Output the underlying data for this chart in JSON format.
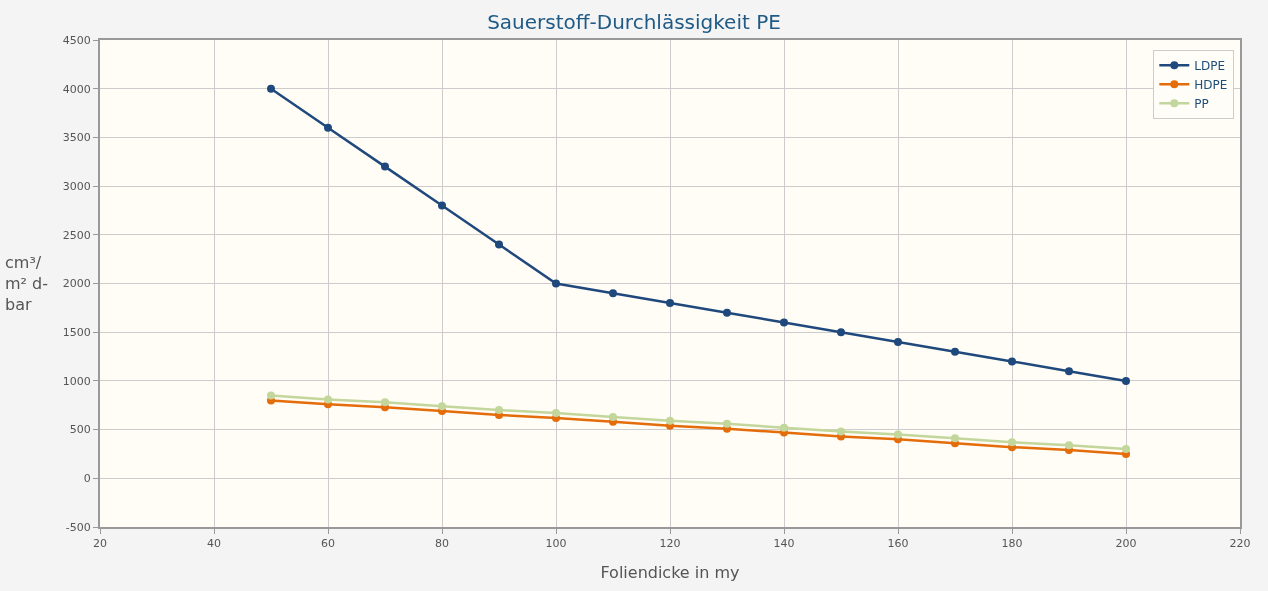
{
  "chart_data": {
    "type": "line",
    "title": "Sauerstoff-Durchlässigkeit PE",
    "xlabel": "Foliendicke in my",
    "ylabel": "cm³/ m² d-bar",
    "x": [
      50,
      60,
      70,
      80,
      90,
      100,
      110,
      120,
      130,
      140,
      150,
      160,
      170,
      180,
      190,
      200
    ],
    "series": [
      {
        "name": "LDPE",
        "color": "#1f497d",
        "values": [
          4000,
          3600,
          3200,
          2800,
          2400,
          2000,
          1900,
          1800,
          1700,
          1600,
          1500,
          1400,
          1300,
          1200,
          1100,
          1000
        ]
      },
      {
        "name": "HDPE",
        "color": "#e46c0a",
        "values": [
          800,
          760,
          730,
          690,
          650,
          620,
          580,
          540,
          510,
          470,
          430,
          400,
          360,
          320,
          290,
          250
        ]
      },
      {
        "name": "PP",
        "color": "#c3d69b",
        "values": [
          850,
          810,
          780,
          740,
          700,
          670,
          630,
          590,
          560,
          520,
          480,
          450,
          410,
          370,
          340,
          300
        ]
      }
    ],
    "xlim": [
      20,
      220
    ],
    "xticks": [
      20,
      40,
      60,
      80,
      100,
      120,
      140,
      160,
      180,
      200,
      220
    ],
    "ylim": [
      -500,
      4500
    ],
    "yticks": [
      -500,
      0,
      500,
      1000,
      1500,
      2000,
      2500,
      3000,
      3500,
      4000,
      4500
    ],
    "grid": true,
    "legend": "top right",
    "marker": "circle",
    "line_style": "solid"
  }
}
